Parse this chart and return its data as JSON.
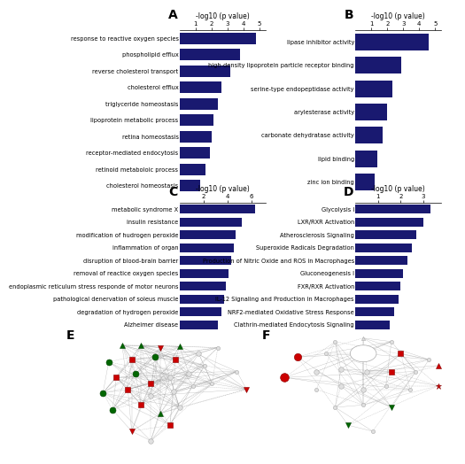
{
  "panel_A": {
    "label": "A",
    "title": "-log10 (p value)",
    "xticks": [
      1,
      2,
      3,
      4,
      5
    ],
    "xlim": [
      0,
      5.4
    ],
    "categories": [
      "cholesterol homeostasis",
      "retinoid metaboloic process",
      "receptor-mediated endocytosis",
      "retina homeostasis",
      "lipoprotein metabolic process",
      "triglyceride homeostasis",
      "cholesterol efflux",
      "reverse cholesterol transport",
      "phospholipid efflux",
      "response to reactive oxygen species"
    ],
    "values": [
      1.3,
      1.6,
      1.9,
      2.0,
      2.1,
      2.4,
      2.6,
      3.2,
      3.8,
      4.8
    ],
    "bar_color": "#191970"
  },
  "panel_B": {
    "label": "B",
    "title": "-log10 (p value)",
    "xticks": [
      1,
      2,
      3,
      4,
      5
    ],
    "xlim": [
      0,
      5.4
    ],
    "categories": [
      "zinc ion binding",
      "lipid binding",
      "carbonate dehydratase activity",
      "arylesterase activity",
      "serine-type endopeptidase activity",
      "high-density lipoprotein particle receptor binding",
      "lipase inhibitor activity"
    ],
    "values": [
      1.2,
      1.4,
      1.7,
      2.0,
      2.3,
      2.9,
      4.6
    ],
    "bar_color": "#191970"
  },
  "panel_C": {
    "label": "C",
    "title": "-log10 (p value)",
    "xticks": [
      2,
      4,
      6
    ],
    "xlim": [
      0,
      7.2
    ],
    "categories": [
      "Alzheimer disease",
      "degradation of hydrogen peroxide",
      "pathological denervation of soleus muscle",
      "endoplasmic reticulum stress responde of motor neurons",
      "removal of reactice oxygen species",
      "disruption of blood-brain barrier",
      "inflammation of organ",
      "modification of hudrogen peroxide",
      "insulin resistance",
      "metabolic syndrome X"
    ],
    "values": [
      3.2,
      3.5,
      3.7,
      3.9,
      4.1,
      4.3,
      4.5,
      4.7,
      5.2,
      6.3
    ],
    "bar_color": "#191970"
  },
  "panel_D": {
    "label": "D",
    "title": "-log10 (p value)",
    "xticks": [
      1,
      2,
      3
    ],
    "xlim": [
      0,
      3.8
    ],
    "categories": [
      "Clathrin-mediated Endocytosis Signaling",
      "NRF2-mediated Oxidative Stress Response",
      "IL-12 Signaling and Production in Macrophages",
      "FXR/RXR Activation",
      "Gluconeogenesis I",
      "Production of Nitric Oxide and ROS in Macrophages",
      "Superoxide Radicals Degradation",
      "Atherosclerosis Signaling",
      "LXR/RXR Activation",
      "Glycolysis I"
    ],
    "values": [
      1.5,
      1.7,
      1.9,
      2.0,
      2.1,
      2.3,
      2.5,
      2.7,
      3.0,
      3.3
    ],
    "bar_color": "#191970"
  },
  "bg_color": "#ffffff",
  "label_fontsize": 7,
  "tick_fontsize": 5,
  "category_fontsize": 4.8,
  "title_fontsize": 5.5
}
